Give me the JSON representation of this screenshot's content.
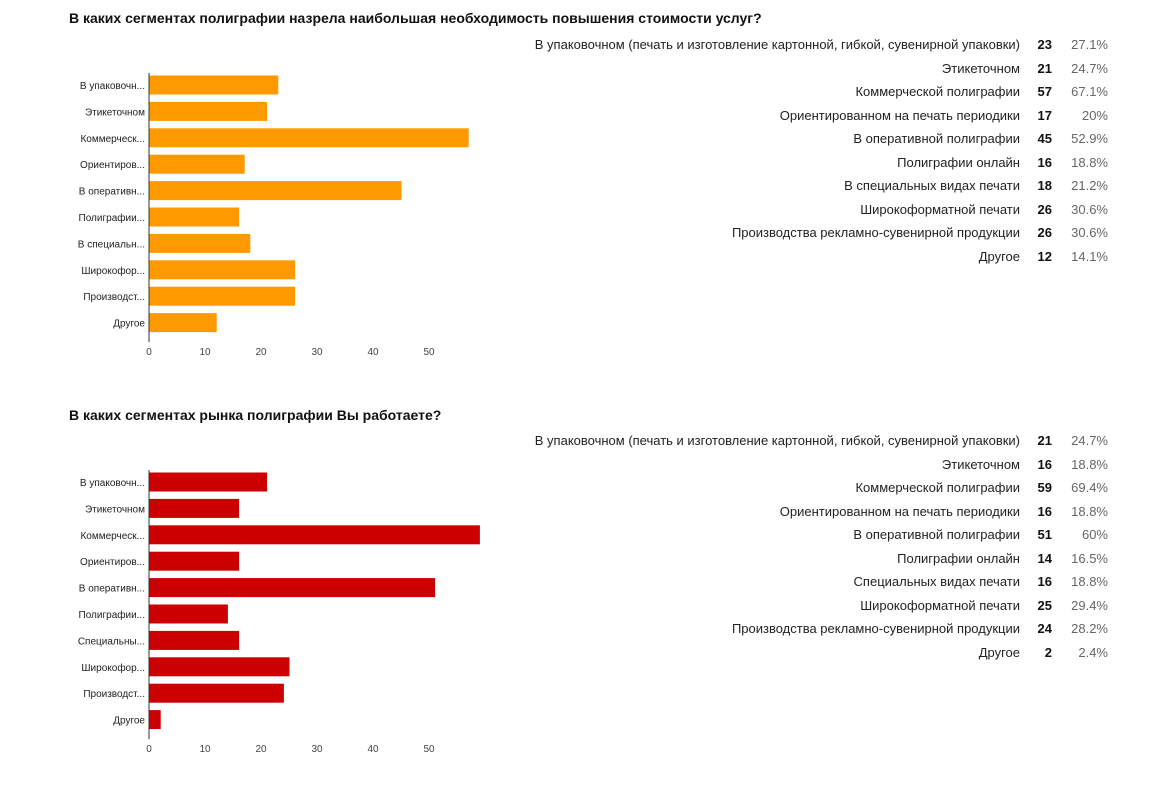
{
  "sections": [
    {
      "title": "В каких сегментах полиграфии назрела наибольшая необходимость повышения стоимости услуг?",
      "bar_color": "#FF9900",
      "chart_data": {
        "type": "bar",
        "orientation": "horizontal",
        "categories": [
          "В упаковочн...",
          "Этикеточном",
          "Коммерческ...",
          "Ориентиров...",
          "В оперативн...",
          "Полиграфии...",
          "В специальн...",
          "Широкофор...",
          "Производст...",
          "Другое"
        ],
        "values": [
          23,
          21,
          57,
          17,
          45,
          16,
          18,
          26,
          26,
          12
        ],
        "xticks": [
          0,
          10,
          20,
          30,
          40,
          50
        ],
        "xlim": [
          0,
          60
        ]
      },
      "summary": [
        {
          "label": "В упаковочном (печать и изготовление картонной, гибкой, сувенирной упаковки)",
          "count": "23",
          "percent": "27.1%"
        },
        {
          "label": "Этикеточном",
          "count": "21",
          "percent": "24.7%"
        },
        {
          "label": "Коммерческой полиграфии",
          "count": "57",
          "percent": "67.1%"
        },
        {
          "label": "Ориентированном на печать периодики",
          "count": "17",
          "percent": "20%"
        },
        {
          "label": "В оперативной полиграфии",
          "count": "45",
          "percent": "52.9%"
        },
        {
          "label": "Полиграфии онлайн",
          "count": "16",
          "percent": "18.8%"
        },
        {
          "label": "В специальных видах печати",
          "count": "18",
          "percent": "21.2%"
        },
        {
          "label": "Широкоформатной печати",
          "count": "26",
          "percent": "30.6%"
        },
        {
          "label": "Производства рекламно-сувенирной продукции",
          "count": "26",
          "percent": "30.6%"
        },
        {
          "label": "Другое",
          "count": "12",
          "percent": "14.1%"
        }
      ]
    },
    {
      "title": "В каких сегментах рынка полиграфии Вы работаете?",
      "bar_color": "#CC0000",
      "chart_data": {
        "type": "bar",
        "orientation": "horizontal",
        "categories": [
          "В упаковочн...",
          "Этикеточном",
          "Коммерческ...",
          "Ориентиров...",
          "В оперативн...",
          "Полиграфии...",
          "Специальны...",
          "Широкофор...",
          "Производст...",
          "Другое"
        ],
        "values": [
          21,
          16,
          59,
          16,
          51,
          14,
          16,
          25,
          24,
          2
        ],
        "xticks": [
          0,
          10,
          20,
          30,
          40,
          50
        ],
        "xlim": [
          0,
          60
        ]
      },
      "summary": [
        {
          "label": "В упаковочном (печать и изготовление картонной, гибкой, сувенирной упаковки)",
          "count": "21",
          "percent": "24.7%"
        },
        {
          "label": "Этикеточном",
          "count": "16",
          "percent": "18.8%"
        },
        {
          "label": "Коммерческой полиграфии",
          "count": "59",
          "percent": "69.4%"
        },
        {
          "label": "Ориентированном на печать периодики",
          "count": "16",
          "percent": "18.8%"
        },
        {
          "label": "В оперативной полиграфии",
          "count": "51",
          "percent": "60%"
        },
        {
          "label": "Полиграфии онлайн",
          "count": "14",
          "percent": "16.5%"
        },
        {
          "label": "Специальных видах печати",
          "count": "16",
          "percent": "18.8%"
        },
        {
          "label": "Широкоформатной печати",
          "count": "25",
          "percent": "29.4%"
        },
        {
          "label": "Производства рекламно-сувенирной продукции",
          "count": "24",
          "percent": "28.2%"
        },
        {
          "label": "Другое",
          "count": "2",
          "percent": "2.4%"
        }
      ]
    }
  ]
}
